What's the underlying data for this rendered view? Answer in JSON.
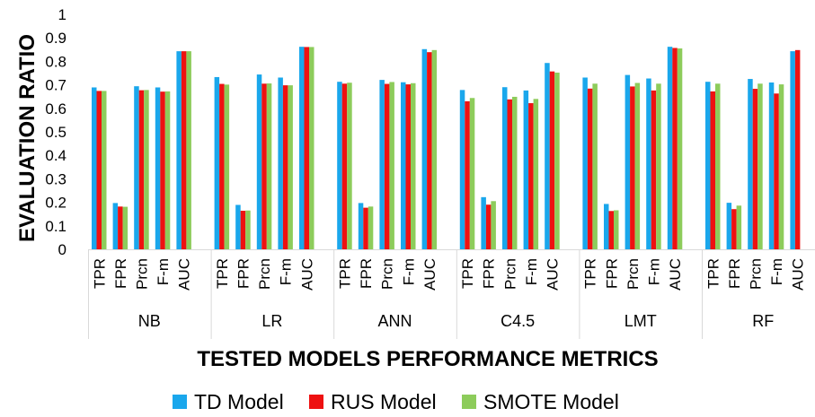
{
  "chart_data": {
    "type": "bar",
    "ylabel": "EVALUATION RATIO",
    "xlabel": "TESTED MODELS PERFORMANCE METRICS",
    "ylim": [
      0,
      1
    ],
    "yticks": [
      "0",
      "0.1",
      "0.2",
      "0.3",
      "0.4",
      "0.5",
      "0.6",
      "0.7",
      "0.8",
      "0.9",
      "1"
    ],
    "grid": false,
    "legend_position": "bottom",
    "metrics": [
      "TPR",
      "FPR",
      "Prcn",
      "F-m",
      "AUC"
    ],
    "groups": [
      "NB",
      "LR",
      "ANN",
      "C4.5",
      "LMT",
      "RF"
    ],
    "last_metric_label_cropped": "AUC",
    "series": [
      {
        "name": "TD Model",
        "color": "#1aa7ec",
        "values": [
          [
            0.689,
            0.197,
            0.694,
            0.689,
            0.843
          ],
          [
            0.733,
            0.189,
            0.744,
            0.731,
            0.862
          ],
          [
            0.713,
            0.197,
            0.721,
            0.711,
            0.852
          ],
          [
            0.678,
            0.222,
            0.69,
            0.676,
            0.793
          ],
          [
            0.731,
            0.193,
            0.742,
            0.727,
            0.862
          ],
          [
            0.713,
            0.198,
            0.725,
            0.71,
            0.843
          ]
        ]
      },
      {
        "name": "RUS Model",
        "color": "#ee1111",
        "values": [
          [
            0.674,
            0.182,
            0.677,
            0.671,
            0.843
          ],
          [
            0.704,
            0.164,
            0.705,
            0.698,
            0.861
          ],
          [
            0.705,
            0.177,
            0.704,
            0.702,
            0.839
          ],
          [
            0.63,
            0.19,
            0.638,
            0.622,
            0.757
          ],
          [
            0.684,
            0.163,
            0.693,
            0.676,
            0.857
          ],
          [
            0.672,
            0.171,
            0.683,
            0.663,
            0.848
          ]
        ]
      },
      {
        "name": "SMOTE Model",
        "color": "#8dcc5b",
        "values": [
          [
            0.674,
            0.181,
            0.678,
            0.672,
            0.843
          ],
          [
            0.701,
            0.165,
            0.706,
            0.698,
            0.861
          ],
          [
            0.709,
            0.182,
            0.712,
            0.707,
            0.848
          ],
          [
            0.644,
            0.205,
            0.649,
            0.64,
            0.752
          ],
          [
            0.705,
            0.166,
            0.708,
            0.705,
            0.855
          ],
          [
            0.705,
            0.186,
            0.705,
            0.702,
            null
          ]
        ]
      }
    ]
  }
}
